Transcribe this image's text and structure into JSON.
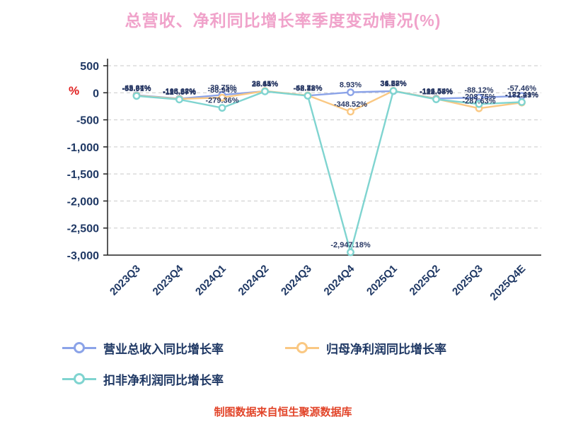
{
  "title": "总营收、净利同比增长率季度变动情况(%)",
  "y_unit_label": "%",
  "footer": "制图数据来自恒生聚源数据库",
  "colors": {
    "title": "#f0a2ca",
    "axis_text": "#1f3864",
    "footer": "#e2452a",
    "y_unit": "#e01f1f",
    "series_revenue": "#8ba3e8",
    "series_net_profit": "#fac883",
    "series_deducted_net_profit": "#7fd4d0"
  },
  "chart_data": {
    "type": "line",
    "title": "总营收、净利同比增长率季度变动情况(%)",
    "xlabel": "",
    "ylabel": "%",
    "ylim": [
      -3000,
      500
    ],
    "yticks": [
      500,
      0,
      -500,
      -1000,
      -1500,
      -2000,
      -2500,
      -3000
    ],
    "grid": "dashed-horizontal",
    "legend_position": "bottom-left",
    "categories": [
      "2023Q3",
      "2023Q4",
      "2024Q1",
      "2024Q2",
      "2024Q3",
      "2024Q4",
      "2025Q1",
      "2025Q2",
      "2025Q3",
      "2025Q4E"
    ],
    "series": [
      {
        "name": "营业总收入同比增长率",
        "color": "#8ba3e8",
        "values": [
          -45.34,
          -108.62,
          -39.75,
          28.41,
          -52.18,
          8.93,
          31.27,
          -106.54,
          -88.12,
          -57.46
        ]
      },
      {
        "name": "归母净利润同比增长率",
        "color": "#fac883",
        "values": [
          -52.67,
          -115.28,
          -88.94,
          32.15,
          -48.73,
          -348.52,
          36.88,
          -112.47,
          -287.63,
          -181.29
        ]
      },
      {
        "name": "扣非净利润同比增长率",
        "color": "#7fd4d0",
        "values": [
          -58.91,
          -124.57,
          -279.36,
          25.64,
          -55.82,
          -2947.18,
          34.52,
          -121.08,
          -208.75,
          -172.41
        ]
      }
    ]
  }
}
